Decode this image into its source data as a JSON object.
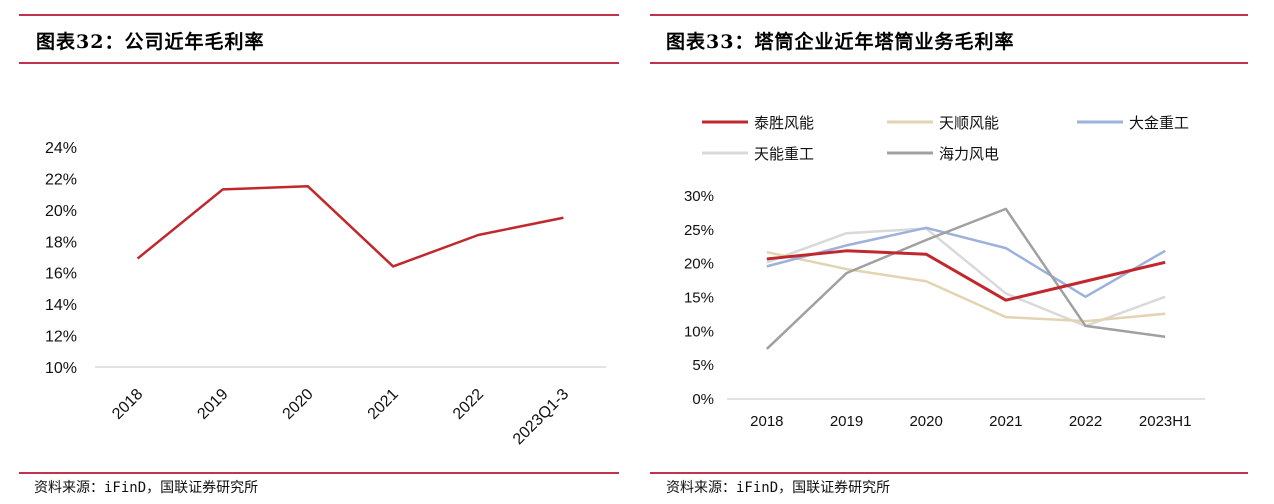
{
  "left": {
    "title": "图表32：公司近年毛利率",
    "source": "资料来源：iFinD，国联证券研究所"
  },
  "right": {
    "title": "图表33：塔筒企业近年塔筒业务毛利率",
    "source": "资料来源：iFinD，国联证券研究所"
  },
  "colors": {
    "rule": "#c0334a",
    "axis": "#d9d9d9"
  },
  "chart_data": [
    {
      "type": "line",
      "title": "图表32：公司近年毛利率",
      "xlabel": "",
      "ylabel": "",
      "categories": [
        "2018",
        "2019",
        "2020",
        "2021",
        "2022",
        "2023Q1-3"
      ],
      "ylim": [
        10,
        24
      ],
      "yticks": [
        "10%",
        "12%",
        "14%",
        "16%",
        "18%",
        "20%",
        "22%",
        "24%"
      ],
      "ytick_values": [
        10,
        12,
        14,
        16,
        18,
        20,
        22,
        24
      ],
      "grid": false,
      "legend": "none",
      "series": [
        {
          "name": "毛利率",
          "color": "#c0282d",
          "values": [
            16.9,
            21.3,
            21.5,
            16.4,
            18.4,
            19.5
          ]
        }
      ]
    },
    {
      "type": "line",
      "title": "图表33：塔筒企业近年塔筒业务毛利率",
      "xlabel": "",
      "ylabel": "",
      "categories": [
        "2018",
        "2019",
        "2020",
        "2021",
        "2022",
        "2023H1"
      ],
      "ylim": [
        0,
        30
      ],
      "yticks": [
        "0%",
        "5%",
        "10%",
        "15%",
        "20%",
        "25%",
        "30%"
      ],
      "ytick_values": [
        0,
        5,
        10,
        15,
        20,
        25,
        30
      ],
      "grid": false,
      "legend": "top",
      "series": [
        {
          "name": "泰胜风能",
          "color": "#c0282d",
          "values": [
            20.7,
            21.9,
            21.4,
            14.6,
            17.4,
            20.2
          ]
        },
        {
          "name": "天顺风能",
          "color": "#e3d3b0",
          "values": [
            21.7,
            19.2,
            17.4,
            12.1,
            11.5,
            12.6
          ]
        },
        {
          "name": "大金重工",
          "color": "#9cb1db",
          "values": [
            19.6,
            22.7,
            25.3,
            22.3,
            15.1,
            21.9
          ]
        },
        {
          "name": "天能重工",
          "color": "#d9d9d9",
          "values": [
            20.2,
            24.5,
            25.2,
            15.6,
            10.8,
            15.1
          ]
        },
        {
          "name": "海力风电",
          "color": "#a0a0a0",
          "values": [
            7.4,
            18.6,
            23.5,
            28.1,
            10.8,
            9.2
          ]
        }
      ]
    }
  ]
}
